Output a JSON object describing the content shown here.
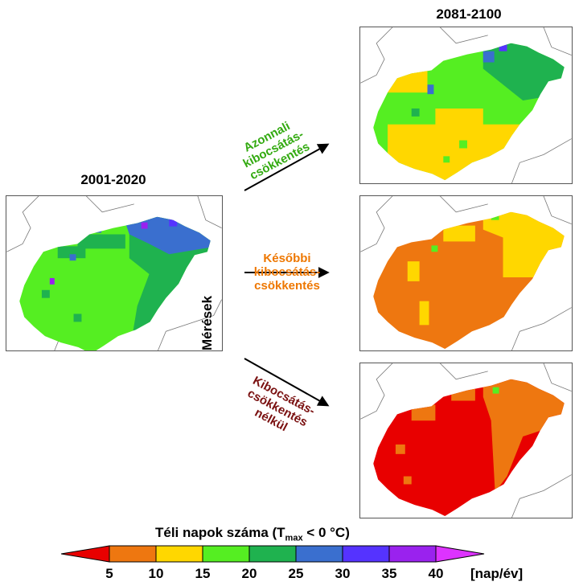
{
  "periods": {
    "observed": "2001-2020",
    "future": "2081-2100"
  },
  "observed_label": "Mérések",
  "scenarios": [
    {
      "lines": [
        "Azonnali",
        "kibocsátás-",
        "csökkentés"
      ],
      "color": "#33aa11"
    },
    {
      "lines": [
        "Későbbi",
        "kibocsátás-",
        "csökkentés"
      ],
      "color": "#ee7700"
    },
    {
      "lines": [
        "Kibocsátás-",
        "csökkentés",
        "nélkül"
      ],
      "color": "#7a1010"
    }
  ],
  "colorbar": {
    "title_prefix": "Téli napok száma (T",
    "title_sub": "max",
    "title_suffix": " < 0 °C)",
    "unit": "[nap/év]",
    "ticks": [
      "5",
      "10",
      "15",
      "20",
      "25",
      "30",
      "35",
      "40"
    ],
    "colors": [
      "#ee7710",
      "#ffd700",
      "#55ee22",
      "#1fb24f",
      "#3a6fcf",
      "#5533ff",
      "#9a22ee"
    ],
    "under_color": "#e80000",
    "over_color": "#dd33ff"
  }
}
